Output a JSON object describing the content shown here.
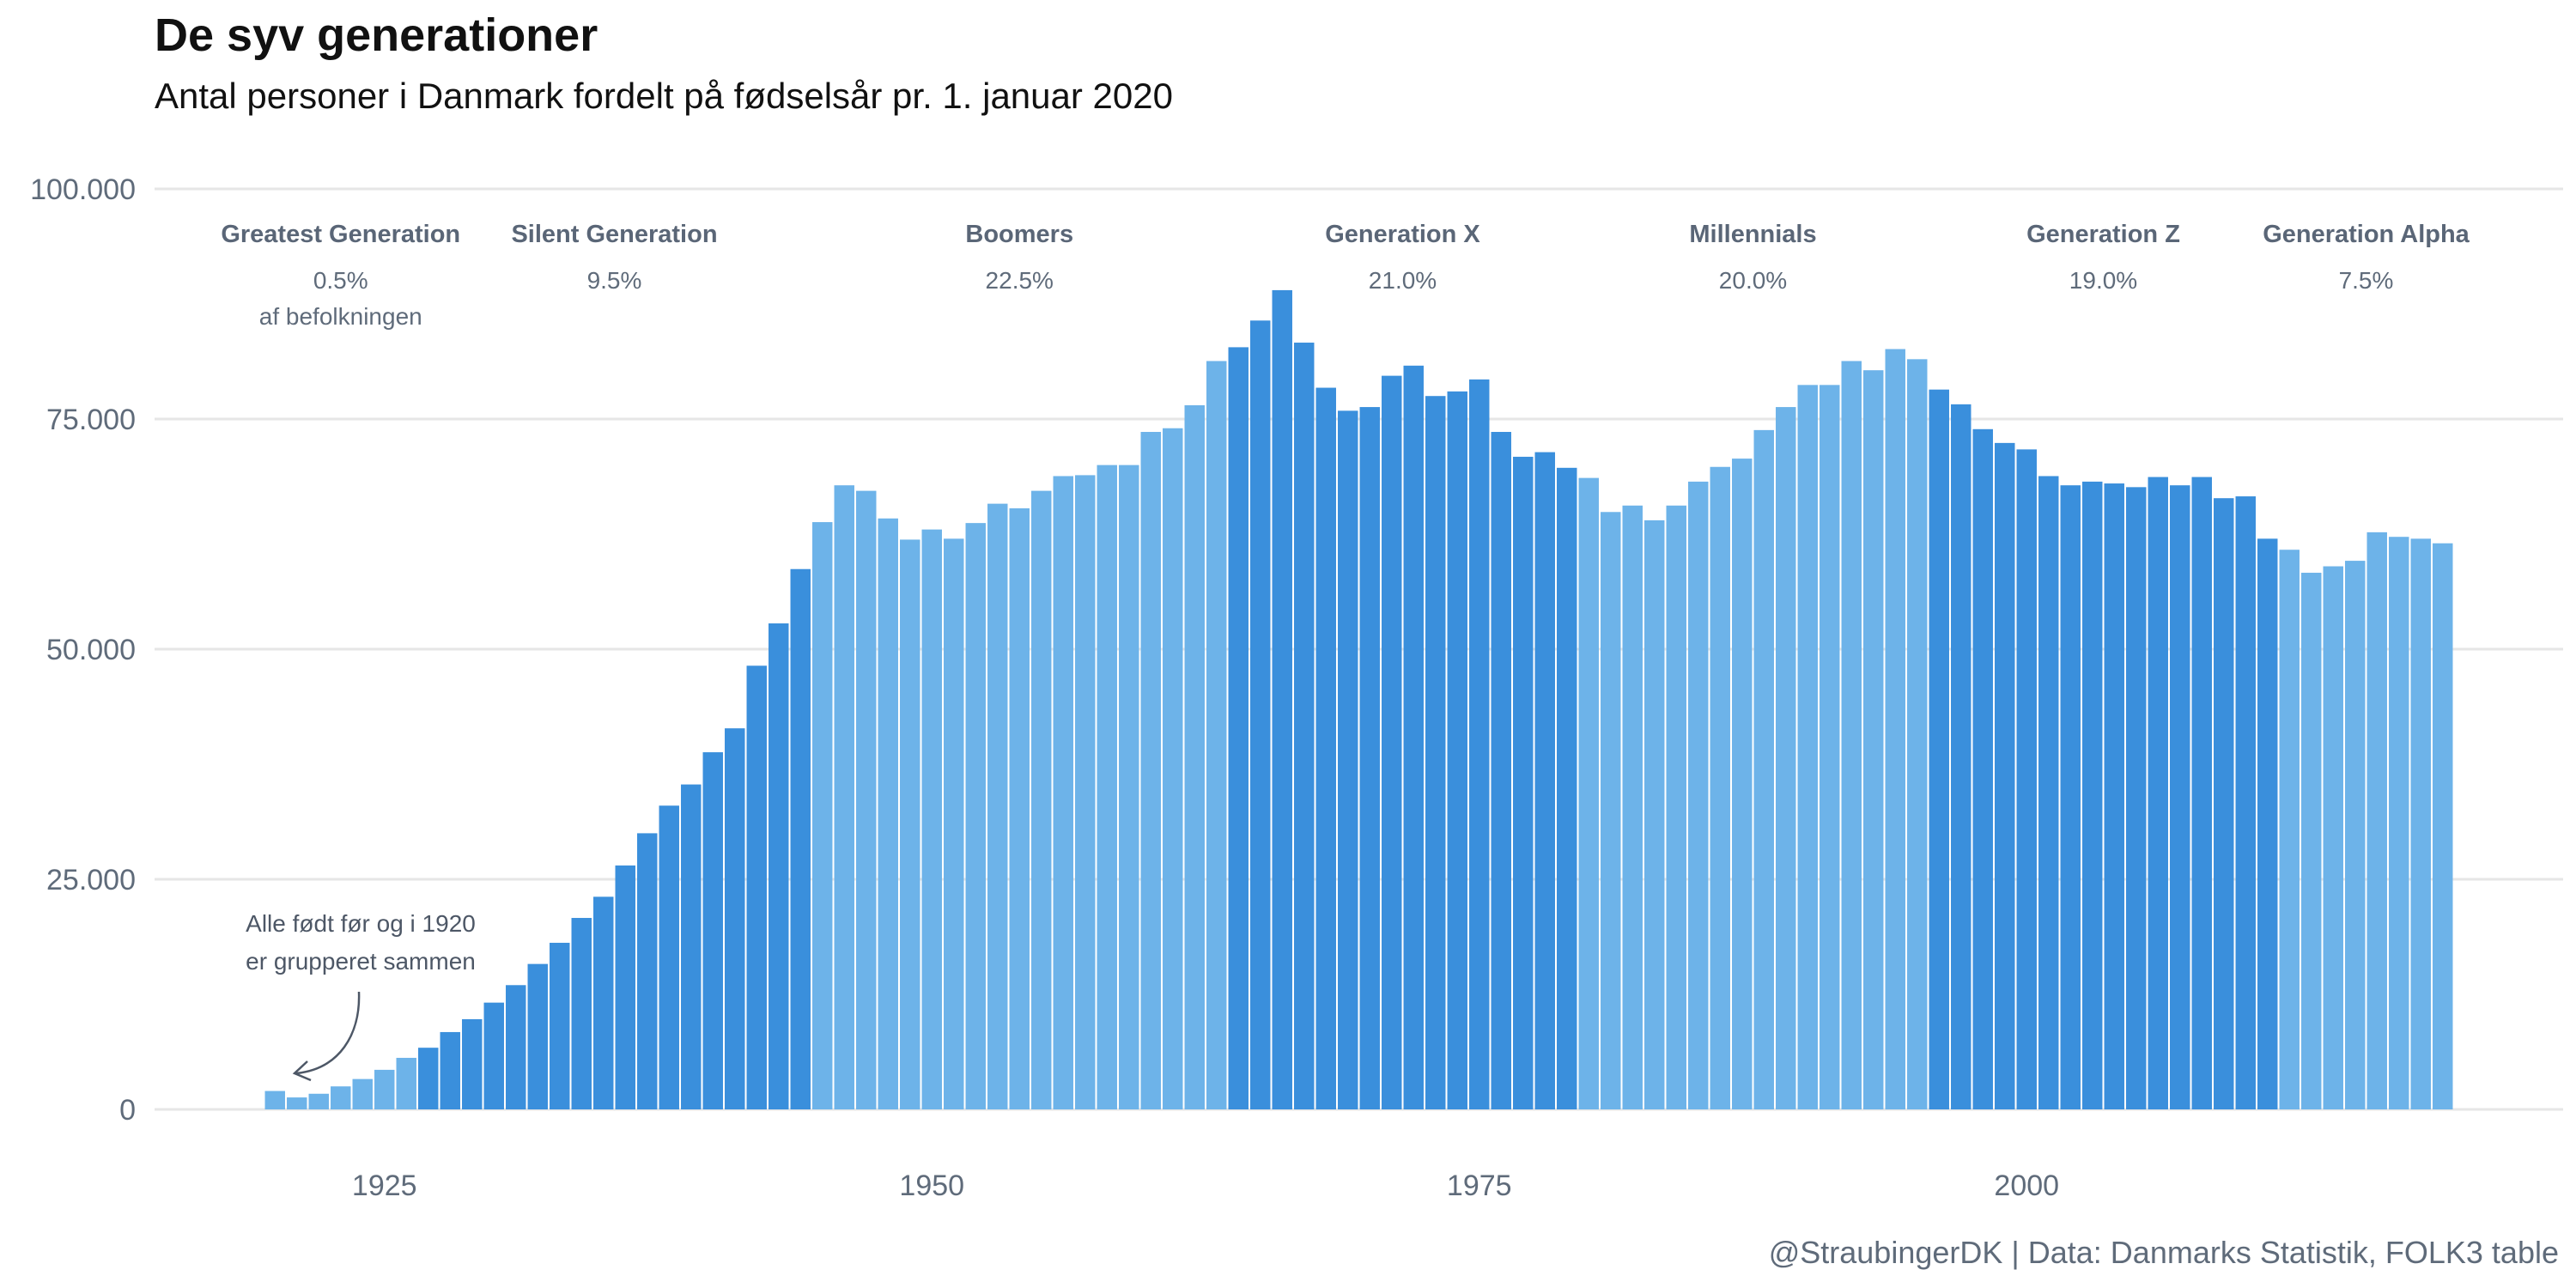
{
  "header": {
    "title": "De syv generationer",
    "subtitle": "Antal personer i Danmark fordelt på fødselsår pr. 1. januar 2020"
  },
  "caption": "@StraubingerDK | Data: Danmarks Statistik, FOLK3 table",
  "annotation": {
    "line1": "Alle født før og i 1920",
    "line2": "er grupperet sammen"
  },
  "generations": [
    {
      "name": "Greatest Generation",
      "share": "0.5%",
      "note": "af befolkningen"
    },
    {
      "name": "Silent Generation",
      "share": "9.5%"
    },
    {
      "name": "Boomers",
      "share": "22.5%"
    },
    {
      "name": "Generation X",
      "share": "21.0%"
    },
    {
      "name": "Millennials",
      "share": "20.0%"
    },
    {
      "name": "Generation Z",
      "share": "19.0%"
    },
    {
      "name": "Generation Alpha",
      "share": "7.5%"
    }
  ],
  "colors": {
    "dark": "#3a8fdc",
    "light": "#6db3e9",
    "grid": "#e6e6e6",
    "text": "#5f6b7a"
  },
  "chart_data": {
    "type": "bar",
    "x": [
      1920,
      1921,
      1922,
      1923,
      1924,
      1925,
      1926,
      1927,
      1928,
      1929,
      1930,
      1931,
      1932,
      1933,
      1934,
      1935,
      1936,
      1937,
      1938,
      1939,
      1940,
      1941,
      1942,
      1943,
      1944,
      1945,
      1946,
      1947,
      1948,
      1949,
      1950,
      1951,
      1952,
      1953,
      1954,
      1955,
      1956,
      1957,
      1958,
      1959,
      1960,
      1961,
      1962,
      1963,
      1964,
      1965,
      1966,
      1967,
      1968,
      1969,
      1970,
      1971,
      1972,
      1973,
      1974,
      1975,
      1976,
      1977,
      1978,
      1979,
      1980,
      1981,
      1982,
      1983,
      1984,
      1985,
      1986,
      1987,
      1988,
      1989,
      1990,
      1991,
      1992,
      1993,
      1994,
      1995,
      1996,
      1997,
      1998,
      1999,
      2000,
      2001,
      2002,
      2003,
      2004,
      2005,
      2006,
      2007,
      2008,
      2009,
      2010,
      2011,
      2012,
      2013,
      2014,
      2015,
      2016,
      2017,
      2018,
      2019
    ],
    "values": [
      2000,
      1300,
      1700,
      2500,
      3300,
      4300,
      5600,
      6700,
      8400,
      9800,
      11600,
      13500,
      15800,
      18100,
      20800,
      23100,
      26500,
      30000,
      33000,
      35300,
      38800,
      41400,
      48200,
      52800,
      58700,
      63800,
      67800,
      67200,
      64200,
      61900,
      63000,
      62000,
      63700,
      65800,
      65300,
      67200,
      68800,
      68900,
      70000,
      70000,
      73600,
      74000,
      76500,
      81300,
      82800,
      85700,
      89000,
      83300,
      78400,
      75900,
      76300,
      79700,
      80800,
      77500,
      78000,
      79300,
      73600,
      70900,
      71400,
      69700,
      68600,
      64900,
      65600,
      64000,
      65600,
      68200,
      69800,
      70700,
      73800,
      76300,
      78700,
      78700,
      81300,
      80300,
      82600,
      81500,
      78200,
      76600,
      73900,
      72400,
      71700,
      68800,
      67800,
      68200,
      68000,
      67600,
      68700,
      67800,
      68700,
      66400,
      66600,
      62000,
      60800,
      58300,
      59000,
      59600,
      62700,
      62200,
      62000,
      61500
    ],
    "gen_boundaries": [
      1927,
      1945,
      1964,
      1980,
      1996,
      2012
    ],
    "xticks": [
      1925,
      1950,
      1975,
      2000
    ],
    "yticks": [
      0,
      25000,
      50000,
      75000,
      100000
    ],
    "ytick_labels": [
      "0",
      "25.000",
      "50.000",
      "75.000",
      "100.000"
    ],
    "ylim": [
      0,
      100000
    ],
    "xlim": [
      1914.5,
      2024.5
    ],
    "grid": true
  }
}
